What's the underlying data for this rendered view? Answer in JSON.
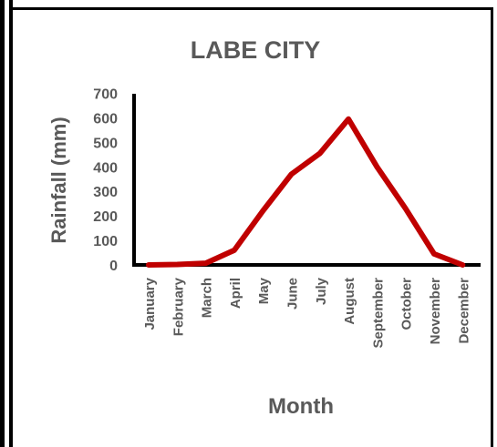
{
  "chart_data": {
    "type": "line",
    "title": "LABE CITY",
    "xlabel": "Month",
    "ylabel": "Rainfall (mm)",
    "categories": [
      "January",
      "February",
      "March",
      "April",
      "May",
      "June",
      "July",
      "August",
      "September",
      "October",
      "November",
      "December"
    ],
    "values": [
      0,
      2,
      7,
      60,
      220,
      370,
      455,
      595,
      400,
      230,
      45,
      0
    ],
    "yticks": [
      0,
      100,
      200,
      300,
      400,
      500,
      600,
      700
    ],
    "ylim": [
      0,
      700
    ],
    "grid": false,
    "legend": "none",
    "line_color": "#C00000",
    "axis_color": "#000000",
    "text_color": "#595959"
  }
}
